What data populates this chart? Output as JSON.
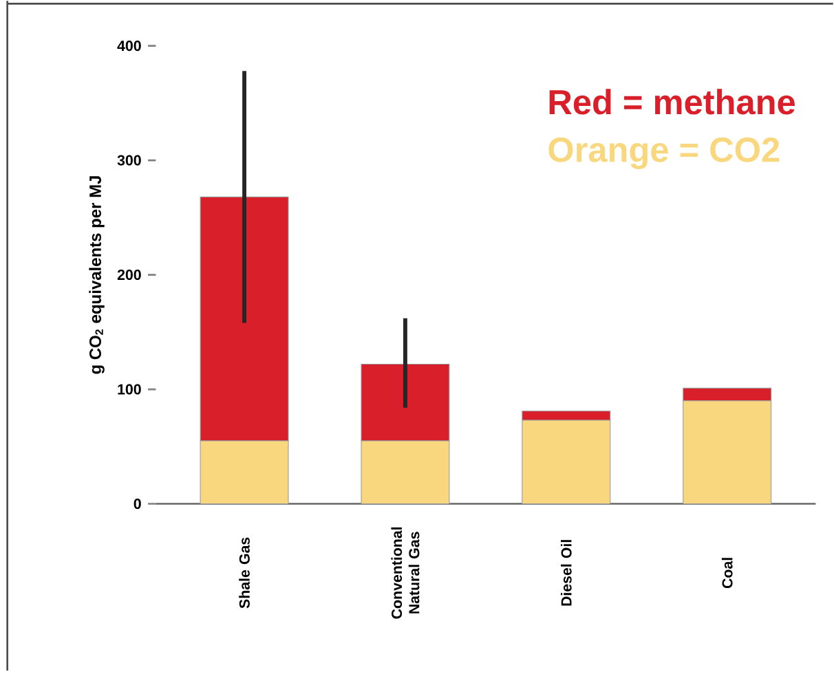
{
  "chart_data": {
    "type": "bar",
    "stacked": true,
    "ylabel": "g CO$_{2}$ equivalents per MJ",
    "categories": [
      "Shale Gas",
      "Conventional Natural Gas",
      "Diesel Oil",
      "Coal"
    ],
    "series": [
      {
        "name": "Orange = CO2",
        "color": "#f8d77e",
        "values": [
          55,
          55,
          73,
          90
        ]
      },
      {
        "name": "Red = methane",
        "color": "#d81f2a",
        "values": [
          213,
          67,
          8,
          11
        ],
        "errors": [
          [
            158,
            378
          ],
          [
            84,
            162
          ],
          null,
          null
        ]
      }
    ],
    "ylim": [
      0,
      400
    ],
    "yticks": [
      0,
      100,
      200,
      300,
      400
    ],
    "legend": "top right"
  }
}
